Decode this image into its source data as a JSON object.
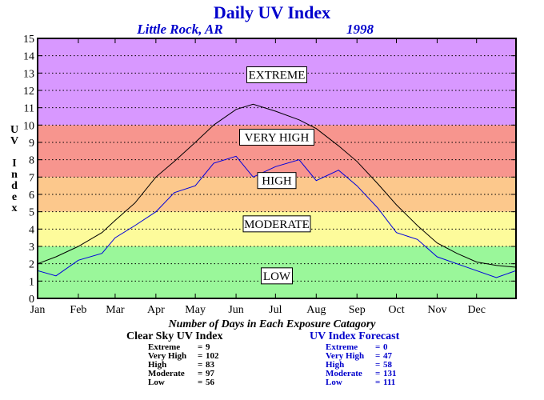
{
  "title": "Daily UV Index",
  "location": "Little Rock, AR",
  "year": "1998",
  "colors": {
    "extreme": "#d898ff",
    "very_high": "#f7958e",
    "high": "#fcc88c",
    "moderate": "#fdfb9b",
    "low": "#9af79a",
    "clear_sky": "#000000",
    "forecast": "#0000dd"
  },
  "chart_data": {
    "type": "line",
    "title": "Daily UV Index",
    "ylabel": "UV Index",
    "ylim": [
      0,
      15
    ],
    "xlim": [
      1,
      365
    ],
    "y_ticks": [
      "0",
      "1",
      "2",
      "3",
      "4",
      "5",
      "6",
      "7",
      "8",
      "9",
      "10",
      "11",
      "12",
      "13",
      "14",
      "15"
    ],
    "x_ticks": [
      {
        "label": "Jan",
        "day": 1
      },
      {
        "label": "Feb",
        "day": 32
      },
      {
        "label": "Mar",
        "day": 60
      },
      {
        "label": "Apr",
        "day": 91
      },
      {
        "label": "May",
        "day": 121
      },
      {
        "label": "Jun",
        "day": 152
      },
      {
        "label": "Jul",
        "day": 182
      },
      {
        "label": "Aug",
        "day": 213
      },
      {
        "label": "Sep",
        "day": 244
      },
      {
        "label": "Oct",
        "day": 274
      },
      {
        "label": "Nov",
        "day": 305
      },
      {
        "label": "Dec",
        "day": 335
      }
    ],
    "grid": true,
    "bands": [
      {
        "name": "LOW",
        "from": 0,
        "to": 3
      },
      {
        "name": "MODERATE",
        "from": 3,
        "to": 5
      },
      {
        "name": "HIGH",
        "from": 5,
        "to": 7
      },
      {
        "name": "VERY HIGH",
        "from": 7,
        "to": 10
      },
      {
        "name": "EXTREME",
        "from": 10,
        "to": 15
      }
    ],
    "band_labels": [
      {
        "text": "EXTREME",
        "y": 12.9
      },
      {
        "text": "VERY HIGH",
        "y": 9.3
      },
      {
        "text": "HIGH",
        "y": 6.8
      },
      {
        "text": "MODERATE",
        "y": 4.3
      },
      {
        "text": "LOW",
        "y": 1.3
      }
    ],
    "series": [
      {
        "name": "Clear Sky UV Index",
        "points": [
          [
            1,
            2.0
          ],
          [
            15,
            2.4
          ],
          [
            32,
            3.0
          ],
          [
            50,
            3.8
          ],
          [
            60,
            4.5
          ],
          [
            75,
            5.5
          ],
          [
            91,
            7.0
          ],
          [
            105,
            7.9
          ],
          [
            121,
            9.0
          ],
          [
            135,
            10.0
          ],
          [
            152,
            10.9
          ],
          [
            165,
            11.2
          ],
          [
            182,
            10.8
          ],
          [
            200,
            10.3
          ],
          [
            213,
            9.8
          ],
          [
            230,
            8.8
          ],
          [
            244,
            7.9
          ],
          [
            260,
            6.6
          ],
          [
            274,
            5.4
          ],
          [
            290,
            4.2
          ],
          [
            305,
            3.2
          ],
          [
            320,
            2.6
          ],
          [
            335,
            2.1
          ],
          [
            350,
            1.9
          ],
          [
            365,
            1.8
          ]
        ]
      },
      {
        "name": "UV Index Forecast",
        "points": [
          [
            1,
            1.6
          ],
          [
            15,
            1.3
          ],
          [
            32,
            2.2
          ],
          [
            50,
            2.6
          ],
          [
            60,
            3.5
          ],
          [
            75,
            4.2
          ],
          [
            91,
            5.0
          ],
          [
            105,
            6.1
          ],
          [
            121,
            6.5
          ],
          [
            135,
            7.8
          ],
          [
            152,
            8.2
          ],
          [
            165,
            7.0
          ],
          [
            182,
            7.6
          ],
          [
            200,
            8.0
          ],
          [
            213,
            6.8
          ],
          [
            230,
            7.4
          ],
          [
            244,
            6.5
          ],
          [
            260,
            5.2
          ],
          [
            274,
            3.8
          ],
          [
            290,
            3.4
          ],
          [
            305,
            2.4
          ],
          [
            320,
            2.0
          ],
          [
            335,
            1.6
          ],
          [
            350,
            1.2
          ],
          [
            365,
            1.6
          ]
        ]
      }
    ]
  },
  "summary": {
    "heading": "Number of Days in Each Exposure Catagory",
    "clear_sky": {
      "title": "Clear Sky UV Index",
      "rows": [
        {
          "label": "Extreme",
          "eq": "=",
          "value": "9"
        },
        {
          "label": "Very High",
          "eq": "=",
          "value": "102"
        },
        {
          "label": "High",
          "eq": "=",
          "value": "83"
        },
        {
          "label": "Moderate",
          "eq": "=",
          "value": "97"
        },
        {
          "label": "Low",
          "eq": "=",
          "value": "56"
        }
      ]
    },
    "forecast": {
      "title": "UV Index Forecast",
      "rows": [
        {
          "label": "Extreme",
          "eq": "=",
          "value": "0"
        },
        {
          "label": "Very High",
          "eq": "=",
          "value": "47"
        },
        {
          "label": "High",
          "eq": "=",
          "value": "58"
        },
        {
          "label": "Moderate",
          "eq": "=",
          "value": "131"
        },
        {
          "label": "Low",
          "eq": "=",
          "value": "111"
        }
      ]
    }
  }
}
